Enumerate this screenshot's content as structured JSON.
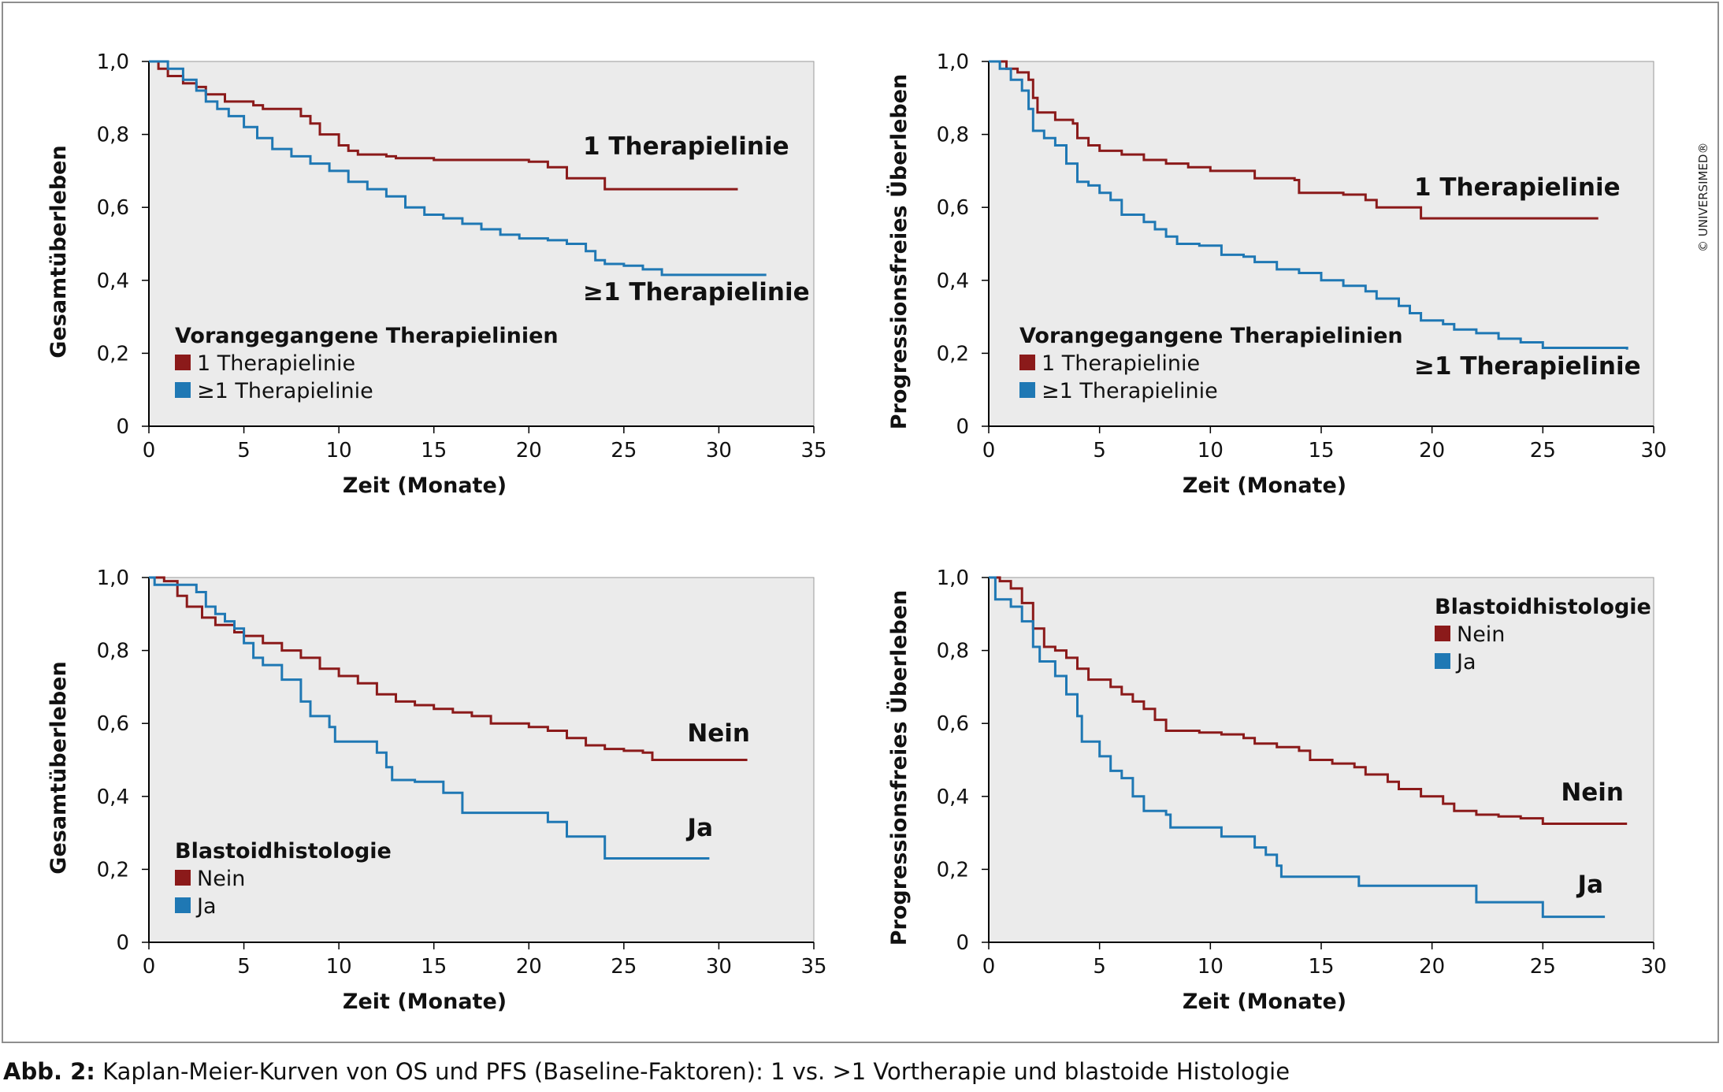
{
  "caption": {
    "label": "Abb. 2:",
    "text": "Kaplan-Meier-Kurven von OS und PFS (Baseline-Faktoren): 1 vs. >1 Vortherapie und blastoide Histologie"
  },
  "copyright": "© UNIVERSIMED®",
  "colors": {
    "red": "#8b1a1a",
    "blue": "#1f78b4",
    "plot_bg": "#ebebeb",
    "frame": "#8e8e8e"
  },
  "chart_data": [
    {
      "type": "line",
      "step": true,
      "xlabel": "Zeit (Monate)",
      "ylabel": "Gesamtüberleben",
      "xlim": [
        0,
        35
      ],
      "ylim": [
        0,
        1
      ],
      "xticks": [
        "0",
        "5",
        "10",
        "15",
        "20",
        "25",
        "30",
        "35"
      ],
      "yticks": [
        "0",
        "0,2",
        "0,4",
        "0,6",
        "0,8",
        "1,0"
      ],
      "legend_title": "Vorangegangene Therapielinien",
      "legend_position": "bottom-left",
      "series": [
        {
          "name": "1 Therapielinie",
          "color": "red",
          "end_label": "1 Therapielinie",
          "points": [
            [
              0,
              1.0
            ],
            [
              0.5,
              0.98
            ],
            [
              1,
              0.96
            ],
            [
              1.8,
              0.94
            ],
            [
              2.5,
              0.93
            ],
            [
              3,
              0.91
            ],
            [
              4,
              0.89
            ],
            [
              5.5,
              0.88
            ],
            [
              6,
              0.87
            ],
            [
              8,
              0.85
            ],
            [
              8.5,
              0.83
            ],
            [
              9,
              0.8
            ],
            [
              10,
              0.77
            ],
            [
              10.5,
              0.755
            ],
            [
              11,
              0.745
            ],
            [
              12.5,
              0.74
            ],
            [
              13,
              0.735
            ],
            [
              15,
              0.73
            ],
            [
              20,
              0.725
            ],
            [
              21,
              0.71
            ],
            [
              22,
              0.68
            ],
            [
              24,
              0.65
            ],
            [
              31,
              0.65
            ]
          ]
        },
        {
          "name": "≥1 Therapielinie",
          "color": "blue",
          "end_label": "≥1 Therapielinie",
          "points": [
            [
              0,
              1.0
            ],
            [
              1,
              0.98
            ],
            [
              1.8,
              0.95
            ],
            [
              2.5,
              0.92
            ],
            [
              3,
              0.89
            ],
            [
              3.6,
              0.87
            ],
            [
              4.2,
              0.85
            ],
            [
              5,
              0.82
            ],
            [
              5.7,
              0.79
            ],
            [
              6.5,
              0.76
            ],
            [
              7.5,
              0.74
            ],
            [
              8.5,
              0.72
            ],
            [
              9.5,
              0.7
            ],
            [
              10.5,
              0.67
            ],
            [
              11.5,
              0.65
            ],
            [
              12.5,
              0.63
            ],
            [
              13.5,
              0.6
            ],
            [
              14.5,
              0.58
            ],
            [
              15.5,
              0.57
            ],
            [
              16.5,
              0.555
            ],
            [
              17.5,
              0.54
            ],
            [
              18.5,
              0.525
            ],
            [
              19.5,
              0.515
            ],
            [
              21,
              0.51
            ],
            [
              22,
              0.5
            ],
            [
              23,
              0.48
            ],
            [
              23.5,
              0.455
            ],
            [
              24,
              0.445
            ],
            [
              25,
              0.44
            ],
            [
              26,
              0.43
            ],
            [
              27,
              0.415
            ],
            [
              32.5,
              0.415
            ]
          ]
        }
      ]
    },
    {
      "type": "line",
      "step": true,
      "xlabel": "Zeit (Monate)",
      "ylabel": "Progressionsfreies Überleben",
      "xlim": [
        0,
        30
      ],
      "ylim": [
        0,
        1
      ],
      "xticks": [
        "0",
        "5",
        "10",
        "15",
        "20",
        "25",
        "30"
      ],
      "yticks": [
        "0",
        "0,2",
        "0,4",
        "0,6",
        "0,8",
        "1,0"
      ],
      "legend_title": "Vorangegangene Therapielinien",
      "legend_position": "bottom-left",
      "series": [
        {
          "name": "1 Therapielinie",
          "color": "red",
          "end_label": "1 Therapielinie",
          "points": [
            [
              0,
              1.0
            ],
            [
              0.8,
              0.98
            ],
            [
              1.3,
              0.97
            ],
            [
              1.8,
              0.95
            ],
            [
              2,
              0.9
            ],
            [
              2.2,
              0.86
            ],
            [
              3,
              0.84
            ],
            [
              3.8,
              0.83
            ],
            [
              4,
              0.79
            ],
            [
              4.5,
              0.77
            ],
            [
              5,
              0.755
            ],
            [
              6,
              0.745
            ],
            [
              7,
              0.73
            ],
            [
              8,
              0.72
            ],
            [
              9,
              0.71
            ],
            [
              10,
              0.7
            ],
            [
              12,
              0.68
            ],
            [
              13.8,
              0.675
            ],
            [
              14,
              0.64
            ],
            [
              16,
              0.635
            ],
            [
              17,
              0.62
            ],
            [
              17.5,
              0.6
            ],
            [
              19.5,
              0.57
            ],
            [
              27.5,
              0.57
            ]
          ]
        },
        {
          "name": "≥1 Therapielinie",
          "color": "blue",
          "end_label": "≥1 Therapielinie",
          "points": [
            [
              0,
              1.0
            ],
            [
              0.5,
              0.98
            ],
            [
              1,
              0.95
            ],
            [
              1.5,
              0.92
            ],
            [
              1.8,
              0.87
            ],
            [
              2,
              0.81
            ],
            [
              2.5,
              0.79
            ],
            [
              3,
              0.77
            ],
            [
              3.5,
              0.72
            ],
            [
              4,
              0.67
            ],
            [
              4.5,
              0.66
            ],
            [
              5,
              0.64
            ],
            [
              5.5,
              0.62
            ],
            [
              6,
              0.58
            ],
            [
              7,
              0.56
            ],
            [
              7.5,
              0.54
            ],
            [
              8,
              0.52
            ],
            [
              8.5,
              0.5
            ],
            [
              9.5,
              0.495
            ],
            [
              10.5,
              0.47
            ],
            [
              11.5,
              0.465
            ],
            [
              12,
              0.45
            ],
            [
              13,
              0.43
            ],
            [
              14,
              0.42
            ],
            [
              15,
              0.4
            ],
            [
              16,
              0.385
            ],
            [
              17,
              0.37
            ],
            [
              17.5,
              0.35
            ],
            [
              18.5,
              0.33
            ],
            [
              19,
              0.31
            ],
            [
              19.5,
              0.29
            ],
            [
              20.5,
              0.28
            ],
            [
              21,
              0.265
            ],
            [
              22,
              0.255
            ],
            [
              23,
              0.24
            ],
            [
              24,
              0.23
            ],
            [
              25,
              0.215
            ],
            [
              28.8,
              0.21
            ]
          ]
        }
      ]
    },
    {
      "type": "line",
      "step": true,
      "xlabel": "Zeit (Monate)",
      "ylabel": "Gesamtüberleben",
      "xlim": [
        0,
        35
      ],
      "ylim": [
        0,
        1
      ],
      "xticks": [
        "0",
        "5",
        "10",
        "15",
        "20",
        "25",
        "30",
        "35"
      ],
      "yticks": [
        "0",
        "0,2",
        "0,4",
        "0,6",
        "0,8",
        "1,0"
      ],
      "legend_title": "Blastoidhistologie",
      "legend_position": "bottom-left",
      "series": [
        {
          "name": "Nein",
          "color": "red",
          "end_label": "Nein",
          "points": [
            [
              0,
              1.0
            ],
            [
              0.8,
              0.99
            ],
            [
              1.5,
              0.95
            ],
            [
              2,
              0.92
            ],
            [
              2.8,
              0.89
            ],
            [
              3.5,
              0.87
            ],
            [
              4.5,
              0.85
            ],
            [
              5,
              0.84
            ],
            [
              6,
              0.82
            ],
            [
              7,
              0.8
            ],
            [
              8,
              0.78
            ],
            [
              9,
              0.75
            ],
            [
              10,
              0.73
            ],
            [
              11,
              0.71
            ],
            [
              12,
              0.68
            ],
            [
              13,
              0.66
            ],
            [
              14,
              0.65
            ],
            [
              15,
              0.64
            ],
            [
              16,
              0.63
            ],
            [
              17,
              0.62
            ],
            [
              18,
              0.6
            ],
            [
              20,
              0.59
            ],
            [
              21,
              0.58
            ],
            [
              22,
              0.56
            ],
            [
              23,
              0.54
            ],
            [
              24,
              0.53
            ],
            [
              25,
              0.525
            ],
            [
              26,
              0.52
            ],
            [
              26.5,
              0.5
            ],
            [
              31.5,
              0.5
            ]
          ]
        },
        {
          "name": "Ja",
          "color": "blue",
          "end_label": "Ja",
          "points": [
            [
              0,
              1.0
            ],
            [
              0.3,
              0.98
            ],
            [
              2.5,
              0.96
            ],
            [
              3,
              0.92
            ],
            [
              3.5,
              0.9
            ],
            [
              4,
              0.88
            ],
            [
              4.5,
              0.86
            ],
            [
              5,
              0.82
            ],
            [
              5.5,
              0.78
            ],
            [
              6,
              0.76
            ],
            [
              7,
              0.72
            ],
            [
              8,
              0.66
            ],
            [
              8.5,
              0.62
            ],
            [
              9.5,
              0.59
            ],
            [
              9.8,
              0.55
            ],
            [
              12,
              0.52
            ],
            [
              12.5,
              0.48
            ],
            [
              12.8,
              0.445
            ],
            [
              14,
              0.44
            ],
            [
              15.5,
              0.41
            ],
            [
              16.5,
              0.355
            ],
            [
              21,
              0.33
            ],
            [
              22,
              0.29
            ],
            [
              24,
              0.23
            ],
            [
              29.5,
              0.23
            ]
          ]
        }
      ]
    },
    {
      "type": "line",
      "step": true,
      "xlabel": "Zeit (Monate)",
      "ylabel": "Progressionsfreies Überleben",
      "xlim": [
        0,
        30
      ],
      "ylim": [
        0,
        1
      ],
      "xticks": [
        "0",
        "5",
        "10",
        "15",
        "20",
        "25",
        "30"
      ],
      "yticks": [
        "0",
        "0,2",
        "0,4",
        "0,6",
        "0,8",
        "1,0"
      ],
      "legend_title": "Blastoidhistologie",
      "legend_position": "top-right",
      "series": [
        {
          "name": "Nein",
          "color": "red",
          "end_label": "Nein",
          "points": [
            [
              0,
              1.0
            ],
            [
              0.5,
              0.99
            ],
            [
              1,
              0.97
            ],
            [
              1.5,
              0.93
            ],
            [
              2,
              0.86
            ],
            [
              2.5,
              0.81
            ],
            [
              3,
              0.8
            ],
            [
              3.5,
              0.78
            ],
            [
              4,
              0.75
            ],
            [
              4.5,
              0.72
            ],
            [
              5.5,
              0.7
            ],
            [
              6,
              0.68
            ],
            [
              6.5,
              0.66
            ],
            [
              7,
              0.64
            ],
            [
              7.5,
              0.61
            ],
            [
              8,
              0.58
            ],
            [
              9.5,
              0.575
            ],
            [
              10.5,
              0.57
            ],
            [
              11.5,
              0.56
            ],
            [
              12,
              0.545
            ],
            [
              13,
              0.535
            ],
            [
              14,
              0.525
            ],
            [
              14.5,
              0.5
            ],
            [
              15.5,
              0.49
            ],
            [
              16.5,
              0.48
            ],
            [
              17,
              0.46
            ],
            [
              18,
              0.44
            ],
            [
              18.5,
              0.42
            ],
            [
              19.5,
              0.4
            ],
            [
              20.5,
              0.38
            ],
            [
              21,
              0.36
            ],
            [
              22,
              0.35
            ],
            [
              23,
              0.345
            ],
            [
              24,
              0.34
            ],
            [
              25,
              0.325
            ],
            [
              28.8,
              0.325
            ]
          ]
        },
        {
          "name": "Ja",
          "color": "blue",
          "end_label": "Ja",
          "points": [
            [
              0,
              1.0
            ],
            [
              0.3,
              0.94
            ],
            [
              1,
              0.92
            ],
            [
              1.5,
              0.88
            ],
            [
              2,
              0.81
            ],
            [
              2.3,
              0.77
            ],
            [
              3,
              0.73
            ],
            [
              3.5,
              0.68
            ],
            [
              4,
              0.62
            ],
            [
              4.2,
              0.55
            ],
            [
              5,
              0.51
            ],
            [
              5.5,
              0.47
            ],
            [
              6,
              0.45
            ],
            [
              6.5,
              0.4
            ],
            [
              7,
              0.36
            ],
            [
              8,
              0.35
            ],
            [
              8.2,
              0.315
            ],
            [
              10.5,
              0.29
            ],
            [
              12,
              0.26
            ],
            [
              12.5,
              0.24
            ],
            [
              13,
              0.21
            ],
            [
              13.2,
              0.18
            ],
            [
              16.7,
              0.155
            ],
            [
              22,
              0.11
            ],
            [
              25,
              0.07
            ],
            [
              27.8,
              0.07
            ]
          ]
        }
      ]
    }
  ]
}
